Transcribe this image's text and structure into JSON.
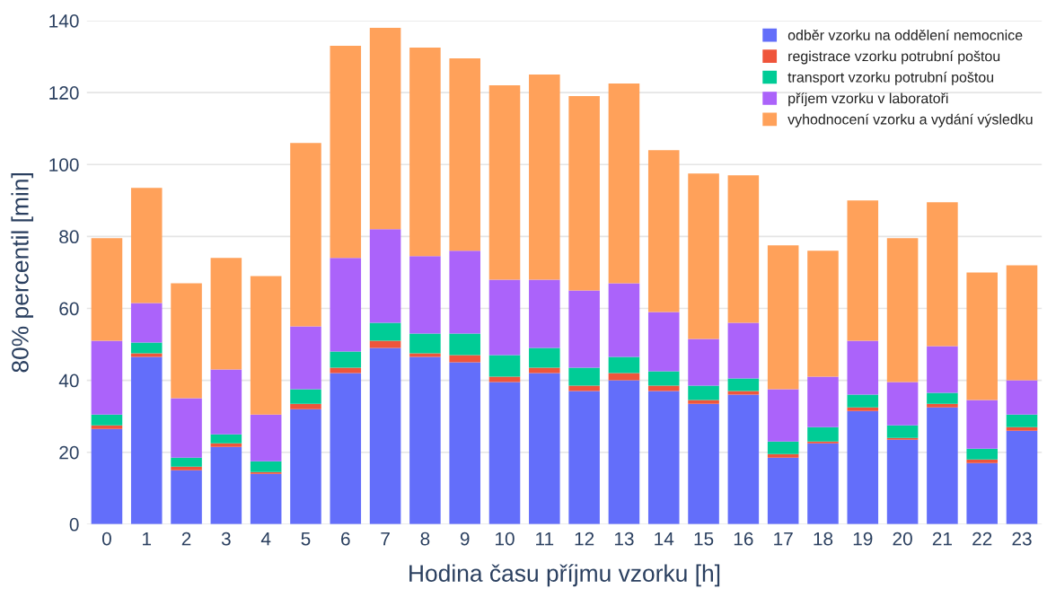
{
  "chart_data": {
    "type": "bar",
    "stacked": true,
    "xlabel": "Hodina času příjmu vzorku [h]",
    "ylabel": "80% percentil [min]",
    "categories": [
      "0",
      "1",
      "2",
      "3",
      "4",
      "5",
      "6",
      "7",
      "8",
      "9",
      "10",
      "11",
      "12",
      "13",
      "14",
      "15",
      "16",
      "17",
      "18",
      "19",
      "20",
      "21",
      "22",
      "23"
    ],
    "series": [
      {
        "name": "odběr vzorku na oddělení nemocnice",
        "color": "#636efa",
        "values": [
          26.5,
          46.5,
          15,
          21.5,
          14,
          32,
          42,
          49,
          46.5,
          45,
          39.5,
          42,
          37,
          40,
          37,
          33.5,
          36,
          18.5,
          22.5,
          31.5,
          23.5,
          32.5,
          17,
          26
        ]
      },
      {
        "name": "registrace vzorku potrubní poštou",
        "color": "#ef553b",
        "values": [
          1,
          1,
          1,
          1,
          0.5,
          1.5,
          1.5,
          2,
          1,
          2,
          1.5,
          1.5,
          1.5,
          2,
          1.5,
          1,
          1,
          1,
          0.5,
          1,
          0.5,
          1,
          1,
          1
        ]
      },
      {
        "name": "transport vzorku potrubní poštou",
        "color": "#00cc96",
        "values": [
          3,
          3,
          2.5,
          2.5,
          3,
          4,
          4.5,
          5,
          5.5,
          6,
          6,
          5.5,
          5,
          4.5,
          4,
          4,
          3.5,
          3.5,
          4,
          3.5,
          3.5,
          3,
          3,
          3.5
        ]
      },
      {
        "name": "příjem vzorku v laboratoři",
        "color": "#ab63fa",
        "values": [
          20.5,
          11,
          16.5,
          18,
          13,
          17.5,
          26,
          26,
          21.5,
          23,
          21,
          19,
          21.5,
          20.5,
          16.5,
          13,
          15.5,
          14.5,
          14,
          15,
          12,
          13,
          13.5,
          9.5
        ]
      },
      {
        "name": "vyhodnocení vzorku a vydání výsledku",
        "color": "#ffa15a",
        "values": [
          28.5,
          32,
          32,
          31,
          38.5,
          51,
          59,
          56,
          58,
          53.5,
          54,
          57,
          54,
          55.5,
          45,
          46,
          41,
          40,
          35,
          39,
          40,
          40,
          35.5,
          32
        ]
      }
    ],
    "ylim": [
      0,
      140
    ],
    "yticks": [
      0,
      20,
      40,
      60,
      80,
      100,
      120,
      140
    ],
    "grid": "y",
    "legend": "top right"
  }
}
